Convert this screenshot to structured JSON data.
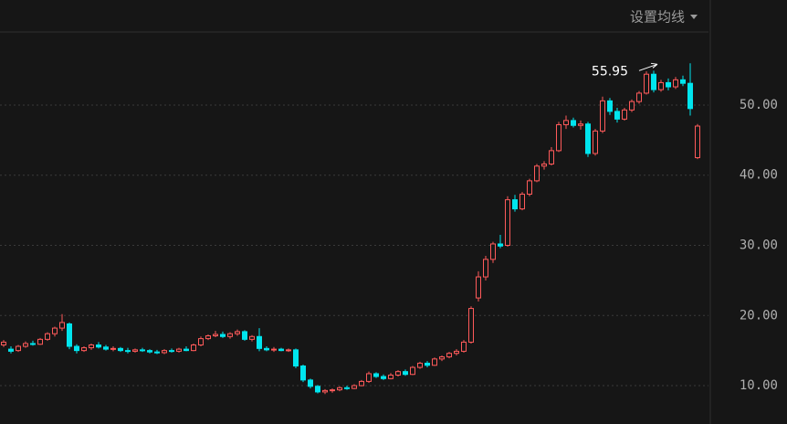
{
  "chart_data": {
    "type": "candlestick",
    "menu_label": "设置均线",
    "annotation": {
      "text": "55.95",
      "value": 55.95
    },
    "up_color": "#ff5a5a",
    "down_color": "#00e5ee",
    "ylim": [
      4.53,
      64.98
    ],
    "yticks": [
      {
        "value": 10,
        "label": "10.00"
      },
      {
        "value": 20,
        "label": "20.00"
      },
      {
        "value": 30,
        "label": "30.00"
      },
      {
        "value": 40,
        "label": "40.00"
      },
      {
        "value": 50,
        "label": "50.00"
      }
    ],
    "grid": true,
    "ohlc": [
      [
        15.8,
        16.5,
        15.5,
        16.2
      ],
      [
        15.2,
        15.6,
        14.6,
        14.9
      ],
      [
        15,
        15.8,
        14.8,
        15.6
      ],
      [
        15.6,
        16.3,
        15.4,
        16
      ],
      [
        16,
        16.4,
        15.7,
        15.9
      ],
      [
        15.9,
        16.8,
        15.8,
        16.6
      ],
      [
        16.6,
        17.6,
        16.4,
        17.4
      ],
      [
        17.4,
        18.4,
        17,
        18.2
      ],
      [
        18.2,
        20.2,
        17.8,
        19
      ],
      [
        18.8,
        19,
        15.2,
        15.6
      ],
      [
        15.6,
        15.9,
        14.6,
        15
      ],
      [
        15,
        15.6,
        14.8,
        15.4
      ],
      [
        15.4,
        16,
        15.1,
        15.8
      ],
      [
        15.8,
        16.2,
        15.3,
        15.5
      ],
      [
        15.5,
        15.8,
        15,
        15.2
      ],
      [
        15.2,
        15.6,
        14.9,
        15.3
      ],
      [
        15.3,
        15.5,
        14.8,
        15
      ],
      [
        15,
        15.4,
        14.6,
        14.9
      ],
      [
        14.9,
        15.3,
        14.7,
        15.1
      ],
      [
        15.1,
        15.4,
        14.8,
        15
      ],
      [
        15,
        15.2,
        14.6,
        14.8
      ],
      [
        14.8,
        15.1,
        14.5,
        14.7
      ],
      [
        14.7,
        15.2,
        14.5,
        15
      ],
      [
        15,
        15.3,
        14.7,
        14.9
      ],
      [
        14.9,
        15.4,
        14.7,
        15.2
      ],
      [
        15.2,
        15.6,
        14.9,
        15
      ],
      [
        15,
        16,
        14.9,
        15.8
      ],
      [
        15.8,
        17,
        15.6,
        16.7
      ],
      [
        16.7,
        17.3,
        16.5,
        17.1
      ],
      [
        17.1,
        17.8,
        16.9,
        17.3
      ],
      [
        17.3,
        17.7,
        16.8,
        17
      ],
      [
        17,
        17.6,
        16.7,
        17.4
      ],
      [
        17.4,
        18,
        17.1,
        17.7
      ],
      [
        17.7,
        17.9,
        16.4,
        16.6
      ],
      [
        16.6,
        17.2,
        16.3,
        17
      ],
      [
        17,
        18.2,
        14.9,
        15.3
      ],
      [
        15.3,
        15.6,
        14.9,
        15.1
      ],
      [
        15.1,
        15.5,
        14.8,
        15.2
      ],
      [
        15.2,
        15.4,
        14.9,
        15
      ],
      [
        15,
        15.3,
        14.8,
        15.1
      ],
      [
        15.1,
        15.3,
        12.5,
        12.8
      ],
      [
        12.8,
        13,
        10.5,
        10.8
      ],
      [
        10.8,
        11,
        9.6,
        9.9
      ],
      [
        9.9,
        10.1,
        8.9,
        9.1
      ],
      [
        9.1,
        9.5,
        8.8,
        9.3
      ],
      [
        9.3,
        9.6,
        9,
        9.4
      ],
      [
        9.4,
        9.9,
        9.2,
        9.7
      ],
      [
        9.7,
        10,
        9.4,
        9.6
      ],
      [
        9.6,
        10.2,
        9.5,
        10
      ],
      [
        10,
        10.8,
        9.9,
        10.6
      ],
      [
        10.6,
        12,
        10.4,
        11.7
      ],
      [
        11.7,
        11.9,
        11.1,
        11.3
      ],
      [
        11.3,
        11.6,
        10.8,
        11
      ],
      [
        11,
        11.8,
        10.9,
        11.5
      ],
      [
        11.5,
        12.2,
        11.3,
        12
      ],
      [
        12,
        12.3,
        11.4,
        11.6
      ],
      [
        11.6,
        12.8,
        11.5,
        12.6
      ],
      [
        12.6,
        13.4,
        12.4,
        13.2
      ],
      [
        13.2,
        13.5,
        12.6,
        12.9
      ],
      [
        12.9,
        14,
        12.8,
        13.8
      ],
      [
        13.8,
        14.3,
        13.5,
        14.1
      ],
      [
        14.1,
        14.8,
        13.9,
        14.6
      ],
      [
        14.6,
        15.2,
        14.3,
        14.9
      ],
      [
        14.9,
        16.5,
        14.7,
        16.2
      ],
      [
        16.2,
        21.3,
        16,
        21
      ],
      [
        22.5,
        26.3,
        22,
        25.5
      ],
      [
        25.5,
        28.5,
        25,
        28
      ],
      [
        28,
        30.5,
        27.5,
        30.2
      ],
      [
        30.2,
        31.5,
        29.6,
        29.9
      ],
      [
        30,
        37,
        29.8,
        36.5
      ],
      [
        36.5,
        37.2,
        34.8,
        35.2
      ],
      [
        35.2,
        37.6,
        35,
        37.3
      ],
      [
        37.3,
        39.5,
        37,
        39.2
      ],
      [
        39.2,
        41.6,
        39,
        41.3
      ],
      [
        41.3,
        42,
        40.8,
        41.6
      ],
      [
        41.6,
        44,
        41.4,
        43.5
      ],
      [
        43.5,
        47.6,
        43.3,
        47.2
      ],
      [
        47.2,
        48.5,
        46.6,
        47.8
      ],
      [
        47.8,
        48.2,
        46.8,
        47.1
      ],
      [
        47.1,
        47.8,
        46.5,
        47.3
      ],
      [
        47.3,
        47.6,
        42.6,
        43.1
      ],
      [
        43.1,
        46.6,
        42.8,
        46.3
      ],
      [
        46.3,
        51.2,
        46,
        50.6
      ],
      [
        50.6,
        51,
        48.6,
        49.1
      ],
      [
        49.1,
        49.6,
        47.5,
        48
      ],
      [
        48,
        49.6,
        47.8,
        49.3
      ],
      [
        49.3,
        50.8,
        49,
        50.5
      ],
      [
        50.5,
        52,
        50.2,
        51.7
      ],
      [
        51.7,
        54.8,
        51.5,
        54.4
      ],
      [
        54.4,
        54.9,
        51.8,
        52.2
      ],
      [
        52.2,
        53.6,
        51.9,
        53.2
      ],
      [
        53.2,
        53.8,
        52.1,
        52.6
      ],
      [
        52.6,
        54,
        52.3,
        53.6
      ],
      [
        53.6,
        54.2,
        52.7,
        53.1
      ],
      [
        53.1,
        55.95,
        48.5,
        49.5
      ],
      [
        42.5,
        47.3,
        42.3,
        47
      ]
    ]
  }
}
